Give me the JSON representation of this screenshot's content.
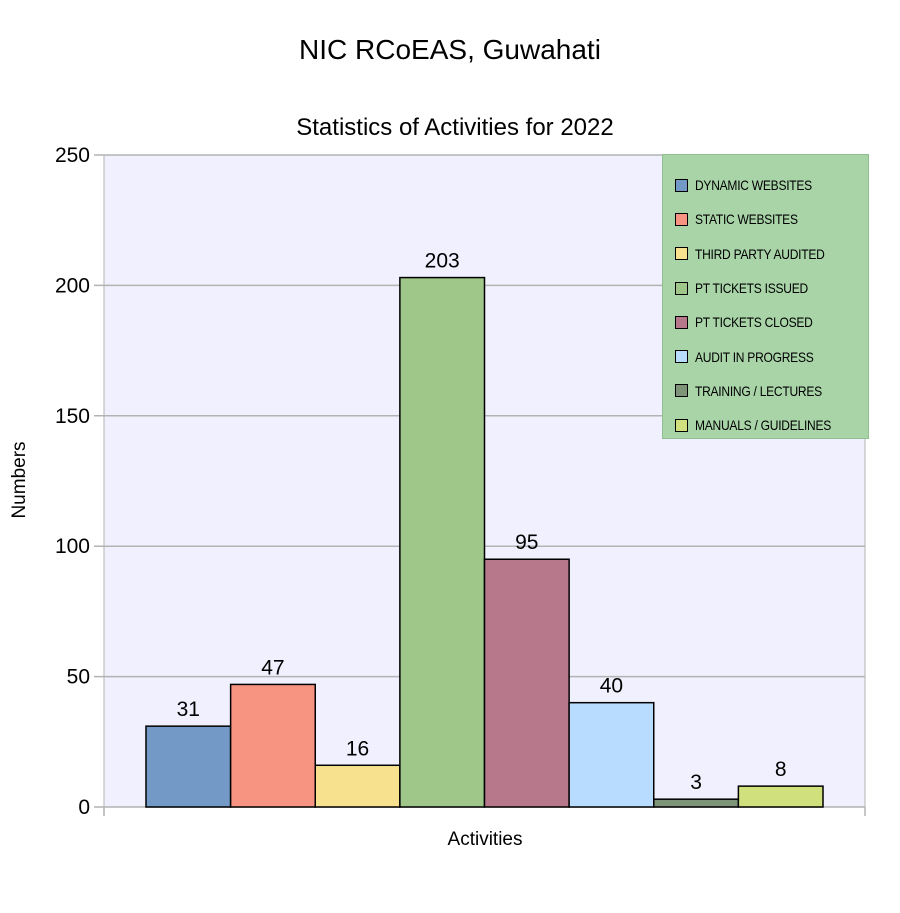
{
  "header": {
    "title": "NIC RCoEAS, Guwahati"
  },
  "chart_data": {
    "type": "bar",
    "title": "Statistics of Activities for 2022",
    "xlabel": "Activities",
    "ylabel": "Numbers",
    "ylim": [
      0,
      250
    ],
    "yticks": [
      0,
      50,
      100,
      150,
      200,
      250
    ],
    "grid": true,
    "legend_position": "top-right",
    "series": [
      {
        "name": "DYNAMIC WEBSITES",
        "value": 31,
        "color": "#7399c6"
      },
      {
        "name": "STATIC WEBSITES",
        "value": 47,
        "color": "#f79481"
      },
      {
        "name": "THIRD PARTY AUDITED",
        "value": 16,
        "color": "#f7e18f"
      },
      {
        "name": "PT TICKETS ISSUED",
        "value": 203,
        "color": "#a0c78a"
      },
      {
        "name": "PT TICKETS CLOSED",
        "value": 95,
        "color": "#b6788a"
      },
      {
        "name": "AUDIT IN PROGRESS",
        "value": 40,
        "color": "#b8dcff"
      },
      {
        "name": "TRAINING / LECTURES",
        "value": 3,
        "color": "#7e9479"
      },
      {
        "name": "MANUALS / GUIDELINES",
        "value": 8,
        "color": "#cfe07c"
      }
    ]
  }
}
